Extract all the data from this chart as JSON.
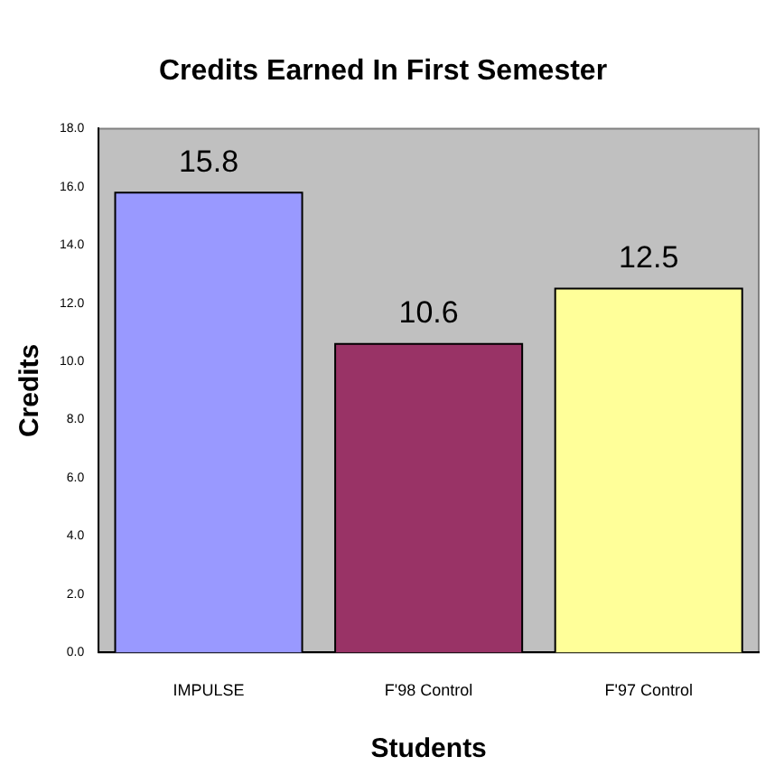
{
  "chart_data": {
    "type": "bar",
    "title": "Credits Earned In First Semester",
    "xlabel": "Students",
    "ylabel": "Credits",
    "categories": [
      "IMPULSE",
      "F'98 Control",
      "F'97 Control"
    ],
    "values": [
      15.8,
      10.6,
      12.5
    ],
    "colors": [
      "#9999ff",
      "#993366",
      "#ffff99"
    ],
    "ylim": [
      0,
      18
    ],
    "yticks": [
      {
        "value": 0,
        "label": "0.0"
      },
      {
        "value": 2,
        "label": "2.0"
      },
      {
        "value": 4,
        "label": "4.0"
      },
      {
        "value": 6,
        "label": "6.0"
      },
      {
        "value": 8,
        "label": "8.0"
      },
      {
        "value": 10,
        "label": "10.0"
      },
      {
        "value": 12,
        "label": "12.0"
      },
      {
        "value": 14,
        "label": "14.0"
      },
      {
        "value": 16,
        "label": "16.0"
      },
      {
        "value": 18,
        "label": "18.0"
      }
    ],
    "grid": false,
    "legend": false,
    "data_labels": true
  }
}
